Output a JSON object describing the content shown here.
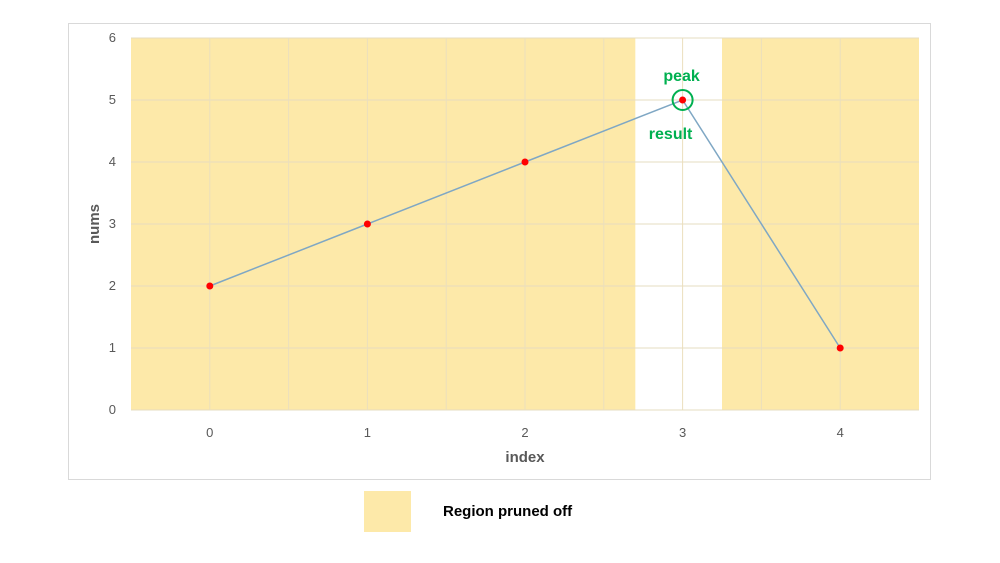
{
  "chart_data": {
    "type": "line",
    "title": "",
    "xlabel": "index",
    "ylabel": "nums",
    "categories": [
      "0",
      "1",
      "2",
      "3",
      "4"
    ],
    "x": [
      0,
      1,
      2,
      3,
      4
    ],
    "values": [
      2,
      3,
      4,
      5,
      1
    ],
    "ylim": [
      0,
      6
    ],
    "yticks": [
      "0",
      "1",
      "2",
      "3",
      "4",
      "5",
      "6"
    ],
    "grid": true,
    "line_color": "#7fa7c4",
    "marker_color": "#ff0000",
    "pruned_regions": [
      [
        -0.5,
        2.7
      ],
      [
        3.25,
        4.5
      ]
    ],
    "pruned_color": "#fde9a9",
    "annotations": {
      "peak_label": "peak",
      "result_label": "result",
      "highlight_index": 3,
      "color": "#00b050"
    },
    "legend": {
      "label": "Region pruned off",
      "placement": "bottom-center"
    }
  }
}
